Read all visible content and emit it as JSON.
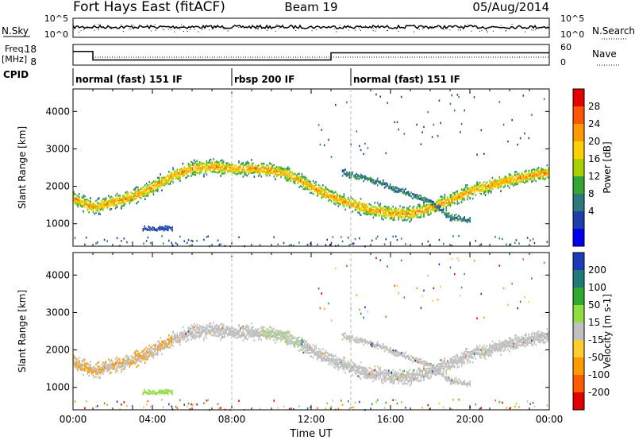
{
  "header": {
    "title": "Fort Hays East (fitACF)",
    "beam": "Beam 19",
    "date": "05/Aug/2014"
  },
  "noise_panel": {
    "left_label": "N.Sky",
    "right_label": "N.Search",
    "left_ticks": [
      "10^5",
      "10^0"
    ],
    "right_ticks": [
      "10^5",
      "10^0"
    ]
  },
  "freq_panel": {
    "left_label_1": "Freq.",
    "left_label_2": "[MHz]",
    "right_label": "Nave",
    "left_ticks": [
      "18",
      "8"
    ],
    "right_ticks": [
      "60",
      "0"
    ]
  },
  "cpid": {
    "label": "CPID",
    "segments": [
      {
        "label": "normal (fast) 151 IF",
        "start_hour": 0,
        "end_hour": 8
      },
      {
        "label": "rbsp 200 IF",
        "start_hour": 8,
        "end_hour": 14
      },
      {
        "label": "normal (fast) 151 IF",
        "start_hour": 14,
        "end_hour": 24
      }
    ]
  },
  "power_panel": {
    "ylabel": "Slant Range [km]",
    "colorbar_label": "Power [dB]",
    "colorbar_ticks": [
      "28",
      "24",
      "20",
      "16",
      "12",
      "8",
      "4"
    ],
    "colors": [
      "#e60000",
      "#ff5500",
      "#ff9900",
      "#ffd000",
      "#a8d000",
      "#33a633",
      "#2d7a7a",
      "#1f3fa8",
      "#0000f0"
    ]
  },
  "velocity_panel": {
    "ylabel": "Slant Range [km]",
    "colorbar_label": "Velocity [m s-1]",
    "colorbar_ticks": [
      "200",
      "100",
      "50",
      "15",
      "-15",
      "-50",
      "-100",
      "-200"
    ],
    "colors": [
      "#1e3ab8",
      "#1f7a7a",
      "#2ea82e",
      "#90dd40",
      "#c0c0c0",
      "#ffcc33",
      "#ff9900",
      "#ff5a00",
      "#e00000"
    ]
  },
  "xaxis": {
    "label": "Time UT",
    "ticks": [
      "00:00",
      "04:00",
      "08:00",
      "12:00",
      "16:00",
      "20:00",
      "00:00"
    ]
  },
  "chart_data": {
    "type": "heatmap",
    "title": "Fort Hays East (fitACF)",
    "xlabel": "Time UT",
    "ylabel": "Slant Range [km]",
    "xlim": [
      0,
      24
    ],
    "ylim": [
      400,
      4600
    ],
    "yticks": [
      1000,
      2000,
      3000,
      4000
    ],
    "power_clim": [
      0,
      32
    ],
    "velocity_clim": [
      -250,
      250
    ],
    "freq_mhz": [
      {
        "start_hour": 0,
        "end_hour": 1.0,
        "value": 16.5
      },
      {
        "start_hour": 1.0,
        "end_hour": 13.0,
        "value": 10.5
      },
      {
        "start_hour": 13.0,
        "end_hour": 24,
        "value": 15.5
      }
    ],
    "scatter_band_km": [
      [
        0.0,
        1700
      ],
      [
        1.0,
        1450
      ],
      [
        2.0,
        1600
      ],
      [
        3.0,
        1750
      ],
      [
        4.0,
        2000
      ],
      [
        5.0,
        2300
      ],
      [
        6.0,
        2500
      ],
      [
        7.0,
        2550
      ],
      [
        8.0,
        2500
      ],
      [
        9.0,
        2500
      ],
      [
        10.0,
        2450
      ],
      [
        11.0,
        2300
      ],
      [
        12.0,
        2000
      ],
      [
        13.0,
        1750
      ],
      [
        14.0,
        1550
      ],
      [
        15.0,
        1400
      ],
      [
        16.0,
        1300
      ],
      [
        17.0,
        1300
      ],
      [
        18.0,
        1450
      ],
      [
        19.0,
        1650
      ],
      [
        20.0,
        1900
      ],
      [
        21.0,
        2050
      ],
      [
        22.0,
        2200
      ],
      [
        23.0,
        2300
      ],
      [
        24.0,
        2400
      ]
    ],
    "secondary_band_km": [
      [
        13.5,
        2400
      ],
      [
        15.0,
        2200
      ],
      [
        16.0,
        2000
      ],
      [
        17.0,
        1800
      ],
      [
        18.0,
        1600
      ],
      [
        19.0,
        1200
      ],
      [
        20.0,
        1100
      ]
    ],
    "isolated_patch": {
      "start_hour": 3.5,
      "end_hour": 5.0,
      "range_km": 900,
      "power_db": 6,
      "velocity": 30
    }
  }
}
